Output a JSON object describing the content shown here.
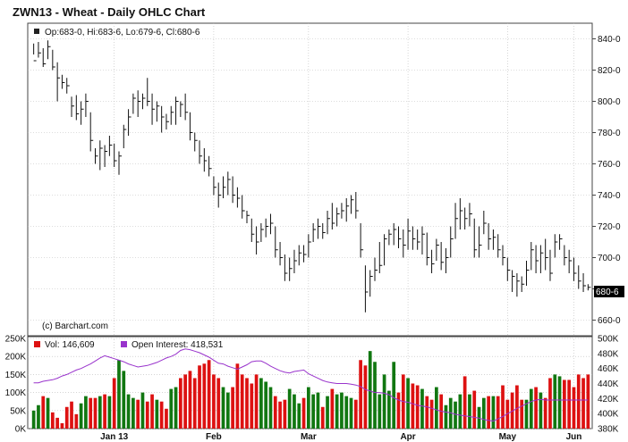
{
  "chart_title": "ZWN13 - Wheat - Daily OHLC Chart",
  "ohlc_readout": "Op:683-0, Hi:683-6, Lo:679-6, Cl:680-6",
  "copyright": "(c) Barchart.com",
  "last_price_label": "680-6",
  "volume_legend": "Vol: 146,609",
  "oi_legend": "Open Interest: 418,531",
  "colors": {
    "up": "#117711",
    "down": "#dd1111",
    "oi": "#9933cc",
    "grid": "#bbbbbb",
    "legend_dark": "#222222",
    "last_tag": "#000000"
  },
  "chart_data": [
    {
      "type": "ohlc",
      "x_labels": [
        "Jan 13",
        "Feb",
        "Mar",
        "Apr",
        "May",
        "Jun"
      ],
      "ylim": [
        650,
        850
      ],
      "y_ticks": [
        {
          "v": 660,
          "label": "660-0"
        },
        {
          "v": 680,
          "label": "680-0"
        },
        {
          "v": 700,
          "label": "700-0"
        },
        {
          "v": 720,
          "label": "720-0"
        },
        {
          "v": 740,
          "label": "740-0"
        },
        {
          "v": 760,
          "label": "760-0"
        },
        {
          "v": 780,
          "label": "780-0"
        },
        {
          "v": 800,
          "label": "800-0"
        },
        {
          "v": 820,
          "label": "820-0"
        },
        {
          "v": 840,
          "label": "840-0"
        }
      ],
      "last_price": 680.75,
      "bars": [
        [
          837,
          830,
          826
        ],
        [
          838,
          828,
          831
        ],
        [
          834,
          822,
          824
        ],
        [
          839,
          827,
          835
        ],
        [
          833,
          820,
          822
        ],
        [
          825,
          800,
          815
        ],
        [
          817,
          808,
          812
        ],
        [
          815,
          805,
          810
        ],
        [
          803,
          790,
          797
        ],
        [
          804,
          788,
          792
        ],
        [
          800,
          785,
          795
        ],
        [
          805,
          790,
          800
        ],
        [
          793,
          768,
          775
        ],
        [
          770,
          760,
          765
        ],
        [
          775,
          756,
          770
        ],
        [
          772,
          758,
          768
        ],
        [
          778,
          765,
          772
        ],
        [
          773,
          758,
          762
        ],
        [
          768,
          753,
          765
        ],
        [
          785,
          770,
          782
        ],
        [
          795,
          778,
          790
        ],
        [
          805,
          792,
          802
        ],
        [
          807,
          790,
          800
        ],
        [
          805,
          795,
          802
        ],
        [
          815,
          797,
          800
        ],
        [
          805,
          785,
          795
        ],
        [
          800,
          787,
          797
        ],
        [
          797,
          780,
          790
        ],
        [
          792,
          782,
          787
        ],
        [
          797,
          785,
          793
        ],
        [
          803,
          785,
          800
        ],
        [
          800,
          790,
          798
        ],
        [
          805,
          788,
          793
        ],
        [
          793,
          775,
          780
        ],
        [
          780,
          768,
          775
        ],
        [
          775,
          760,
          765
        ],
        [
          770,
          755,
          762
        ],
        [
          765,
          752,
          757
        ],
        [
          752,
          740,
          745
        ],
        [
          748,
          732,
          740
        ],
        [
          752,
          738,
          745
        ],
        [
          755,
          740,
          750
        ],
        [
          752,
          735,
          740
        ],
        [
          745,
          732,
          738
        ],
        [
          740,
          725,
          730
        ],
        [
          730,
          722,
          727
        ],
        [
          725,
          710,
          715
        ],
        [
          720,
          702,
          710
        ],
        [
          722,
          710,
          718
        ],
        [
          725,
          713,
          720
        ],
        [
          728,
          715,
          722
        ],
        [
          720,
          700,
          705
        ],
        [
          710,
          695,
          700
        ],
        [
          702,
          685,
          690
        ],
        [
          700,
          685,
          693
        ],
        [
          705,
          690,
          698
        ],
        [
          708,
          695,
          703
        ],
        [
          708,
          697,
          702
        ],
        [
          715,
          700,
          710
        ],
        [
          722,
          710,
          718
        ],
        [
          725,
          712,
          720
        ],
        [
          722,
          712,
          716
        ],
        [
          730,
          715,
          725
        ],
        [
          735,
          718,
          722
        ],
        [
          732,
          720,
          728
        ],
        [
          735,
          725,
          730
        ],
        [
          738,
          723,
          733
        ],
        [
          740,
          728,
          737
        ],
        [
          742,
          725,
          730
        ],
        [
          722,
          700,
          705
        ],
        [
          695,
          665,
          678
        ],
        [
          692,
          675,
          688
        ],
        [
          700,
          685,
          692
        ],
        [
          710,
          690,
          695
        ],
        [
          715,
          695,
          712
        ],
        [
          718,
          708,
          715
        ],
        [
          722,
          708,
          718
        ],
        [
          720,
          706,
          712
        ],
        [
          718,
          700,
          708
        ],
        [
          725,
          705,
          717
        ],
        [
          720,
          705,
          712
        ],
        [
          718,
          705,
          710
        ],
        [
          720,
          702,
          715
        ],
        [
          716,
          695,
          700
        ],
        [
          705,
          690,
          696
        ],
        [
          712,
          698,
          708
        ],
        [
          710,
          692,
          697
        ],
        [
          706,
          690,
          700
        ],
        [
          720,
          700,
          712
        ],
        [
          735,
          712,
          725
        ],
        [
          738,
          718,
          730
        ],
        [
          732,
          718,
          725
        ],
        [
          735,
          720,
          728
        ],
        [
          725,
          700,
          705
        ],
        [
          720,
          700,
          708
        ],
        [
          730,
          715,
          722
        ],
        [
          722,
          705,
          712
        ],
        [
          718,
          705,
          713
        ],
        [
          715,
          700,
          705
        ],
        [
          708,
          695,
          700
        ],
        [
          700,
          685,
          692
        ],
        [
          692,
          678,
          688
        ],
        [
          690,
          675,
          685
        ],
        [
          688,
          678,
          683
        ],
        [
          698,
          682,
          692
        ],
        [
          710,
          692,
          705
        ],
        [
          708,
          690,
          698
        ],
        [
          708,
          690,
          703
        ],
        [
          712,
          692,
          700
        ],
        [
          705,
          685,
          690
        ],
        [
          715,
          700,
          710
        ],
        [
          715,
          705,
          712
        ],
        [
          708,
          695,
          700
        ],
        [
          705,
          690,
          698
        ],
        [
          700,
          685,
          690
        ],
        [
          695,
          680,
          685
        ],
        [
          690,
          678,
          682
        ],
        [
          683,
          679,
          681
        ]
      ]
    },
    {
      "type": "volume_open_interest",
      "vol_ylim": [
        0,
        250000
      ],
      "vol_ticks": [
        {
          "v": 0,
          "label": "0K"
        },
        {
          "v": 50000,
          "label": "50K"
        },
        {
          "v": 100000,
          "label": "100K"
        },
        {
          "v": 150000,
          "label": "150K"
        },
        {
          "v": 200000,
          "label": "200K"
        },
        {
          "v": 250000,
          "label": "250K"
        }
      ],
      "oi_ylim": [
        380000,
        500000
      ],
      "oi_ticks": [
        {
          "v": 380000,
          "label": "380K"
        },
        {
          "v": 400000,
          "label": "400K"
        },
        {
          "v": 420000,
          "label": "420K"
        },
        {
          "v": 440000,
          "label": "440K"
        },
        {
          "v": 460000,
          "label": "460K"
        },
        {
          "v": 480000,
          "label": "480K"
        },
        {
          "v": 500000,
          "label": "500K"
        }
      ],
      "volume": [
        50000,
        65000,
        90000,
        85000,
        45000,
        30000,
        15000,
        60000,
        75000,
        40000,
        70000,
        90000,
        85000,
        85000,
        90000,
        95000,
        90000,
        140000,
        190000,
        160000,
        95000,
        85000,
        80000,
        100000,
        75000,
        95000,
        80000,
        75000,
        55000,
        110000,
        115000,
        140000,
        150000,
        160000,
        140000,
        175000,
        180000,
        190000,
        150000,
        140000,
        115000,
        100000,
        115000,
        180000,
        150000,
        140000,
        125000,
        150000,
        140000,
        130000,
        115000,
        90000,
        75000,
        80000,
        110000,
        95000,
        70000,
        85000,
        115000,
        95000,
        100000,
        60000,
        90000,
        110000,
        95000,
        100000,
        90000,
        85000,
        80000,
        190000,
        175000,
        215000,
        185000,
        95000,
        150000,
        105000,
        185000,
        100000,
        150000,
        140000,
        125000,
        120000,
        110000,
        90000,
        80000,
        115000,
        95000,
        65000,
        85000,
        75000,
        95000,
        145000,
        95000,
        105000,
        60000,
        85000,
        90000,
        90000,
        90000,
        120000,
        80000,
        100000,
        120000,
        80000,
        80000,
        110000,
        115000,
        100000,
        85000,
        140000,
        150000,
        145000,
        135000,
        135000,
        115000,
        150000,
        140000,
        150000
      ],
      "open_interest": [
        441000,
        441000,
        443000,
        444000,
        445000,
        447000,
        450000,
        452000,
        455000,
        458000,
        460000,
        463000,
        466000,
        470000,
        474000,
        477000,
        475000,
        473000,
        471000,
        469000,
        466000,
        464000,
        462000,
        463000,
        464000,
        466000,
        468000,
        471000,
        474000,
        476000,
        479000,
        484000,
        486000,
        485000,
        483000,
        481000,
        478000,
        475000,
        471000,
        467000,
        466000,
        463000,
        461000,
        459000,
        462000,
        465000,
        469000,
        470000,
        470000,
        467000,
        463000,
        460000,
        457000,
        455000,
        454000,
        456000,
        457000,
        458000,
        453000,
        450000,
        447000,
        444000,
        442000,
        441000,
        440000,
        440000,
        440000,
        439000,
        438000,
        436000,
        432000,
        430000,
        428000,
        428000,
        427000,
        425000,
        421000,
        418000,
        416000,
        415000,
        413000,
        411000,
        410000,
        409000,
        407000,
        405000,
        403000,
        402000,
        401000,
        399000,
        398000,
        397000,
        396000,
        395000,
        394000,
        392000,
        391000,
        390000,
        393000,
        396000,
        400000,
        403000,
        407000,
        410000,
        413000,
        416000,
        418000,
        419000,
        418000,
        418000,
        418000,
        418000,
        418000,
        418000,
        418000,
        418000,
        418000,
        418000
      ]
    }
  ]
}
